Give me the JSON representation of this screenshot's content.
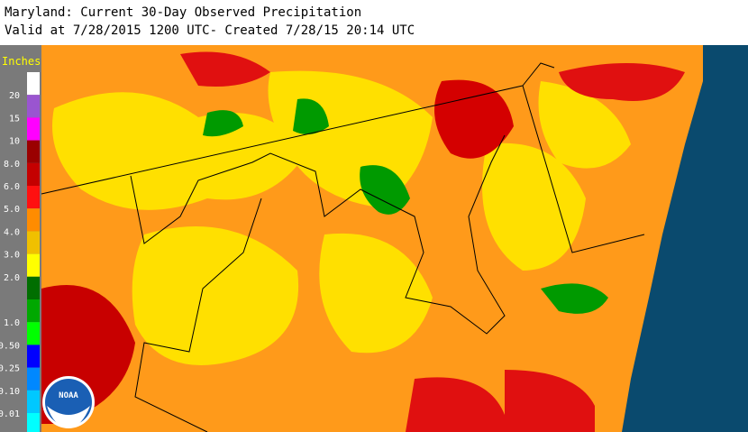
{
  "header": {
    "title": "Maryland: Current 30-Day Observed Precipitation",
    "subtitle": "Valid at 7/28/2015 1200 UTC- Created 7/28/15 20:14 UTC"
  },
  "legend": {
    "title": "Inches",
    "colors": [
      "#ffffff",
      "#9a55d0",
      "#ff00ff",
      "#9a0000",
      "#c40000",
      "#ff1010",
      "#ff8c00",
      "#f0c000",
      "#ffff00",
      "#006e00",
      "#00a800",
      "#00ff00",
      "#0000ff",
      "#0088ff",
      "#00c8ff",
      "#00ffff"
    ],
    "labels": [
      "20",
      "15",
      "10",
      "8.0",
      "6.0",
      "5.0",
      "4.0",
      "3.0",
      "2.0",
      null,
      "1.0",
      "0.50",
      "0.25",
      "0.10",
      "0.01"
    ]
  },
  "logo": {
    "text": "NOAA"
  }
}
